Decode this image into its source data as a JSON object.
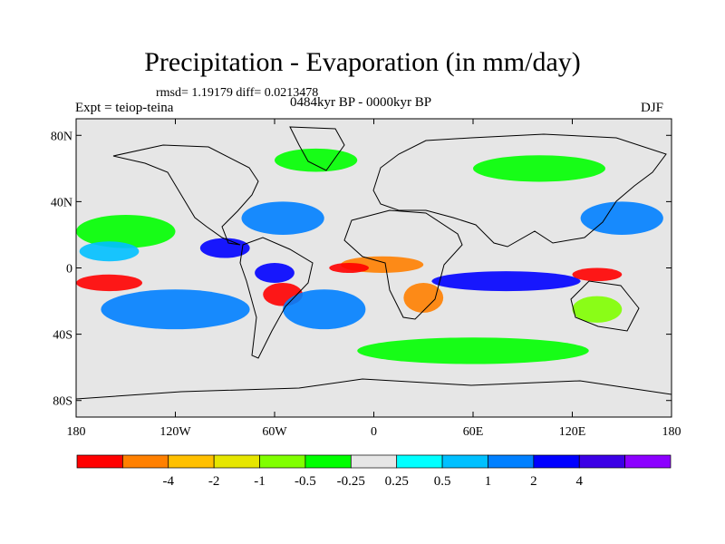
{
  "title": "Precipitation - Evaporation (in mm/day)",
  "stats": "rmsd= 1.19179 diff= 0.0213478",
  "experiment": "Expt = teiop-teina",
  "period": "0484kyr BP - 0000kyr BP",
  "season": "DJF",
  "map": {
    "projection": "cylindrical-equidistant",
    "lon_range": [
      -180,
      180
    ],
    "lat_range": [
      -90,
      90
    ],
    "lon_ticks": [
      {
        "value": -180,
        "label": "180"
      },
      {
        "value": -120,
        "label": "120W"
      },
      {
        "value": -60,
        "label": "60W"
      },
      {
        "value": 0,
        "label": "0"
      },
      {
        "value": 60,
        "label": "60E"
      },
      {
        "value": 120,
        "label": "120E"
      },
      {
        "value": 180,
        "label": "180"
      }
    ],
    "lat_ticks": [
      {
        "value": 80,
        "label": "80N"
      },
      {
        "value": 40,
        "label": "40N"
      },
      {
        "value": 0,
        "label": "0"
      },
      {
        "value": -40,
        "label": "40S"
      },
      {
        "value": -80,
        "label": "80S"
      }
    ],
    "background_color": "#e6e6e6"
  },
  "colorbar": {
    "colors": [
      "#ff0000",
      "#ff8000",
      "#ffc000",
      "#e6e600",
      "#80ff00",
      "#00ff00",
      "#e6e6e6",
      "#00ffff",
      "#00c0ff",
      "#0080ff",
      "#0000ff",
      "#3c00e6",
      "#8c00ff"
    ],
    "labels": [
      "-4",
      "-2",
      "-1",
      "-0.5",
      "-0.25",
      "0.25",
      "0.5",
      "1",
      "2",
      "4"
    ]
  },
  "fields": [
    {
      "name": "equatorial-pacific-red",
      "color": "#ff0000",
      "lon": -160,
      "lat": -9,
      "rlon": 20,
      "rlat": 5
    },
    {
      "name": "south-pacific-blue",
      "color": "#0080ff",
      "lon": -120,
      "lat": -25,
      "rlon": 45,
      "rlat": 12
    },
    {
      "name": "north-pacific-green",
      "color": "#00ff00",
      "lon": -150,
      "lat": 22,
      "rlon": 30,
      "rlat": 10
    },
    {
      "name": "north-pacific-cyan",
      "color": "#00c0ff",
      "lon": -160,
      "lat": 10,
      "rlon": 18,
      "rlat": 6
    },
    {
      "name": "central-america-blue",
      "color": "#0000ff",
      "lon": -90,
      "lat": 12,
      "rlon": 15,
      "rlat": 6
    },
    {
      "name": "amazon-blue",
      "color": "#0000ff",
      "lon": -60,
      "lat": -3,
      "rlon": 12,
      "rlat": 6
    },
    {
      "name": "south-america-red",
      "color": "#ff0000",
      "lon": -55,
      "lat": -16,
      "rlon": 12,
      "rlat": 7
    },
    {
      "name": "south-atlantic-blue",
      "color": "#0080ff",
      "lon": -30,
      "lat": -25,
      "rlon": 25,
      "rlat": 12
    },
    {
      "name": "north-atlantic-blue",
      "color": "#0080ff",
      "lon": -55,
      "lat": 30,
      "rlon": 25,
      "rlat": 10
    },
    {
      "name": "greenland-green",
      "color": "#00ff00",
      "lon": -35,
      "lat": 65,
      "rlon": 25,
      "rlat": 7
    },
    {
      "name": "africa-orange",
      "color": "#ff8000",
      "lon": 5,
      "lat": 2,
      "rlon": 25,
      "rlat": 5
    },
    {
      "name": "africa-red",
      "color": "#ff0000",
      "lon": -15,
      "lat": 0,
      "rlon": 12,
      "rlat": 3
    },
    {
      "name": "south-africa-orange",
      "color": "#ff8000",
      "lon": 30,
      "lat": -18,
      "rlon": 12,
      "rlat": 9
    },
    {
      "name": "indian-ocean-blue",
      "color": "#0000ff",
      "lon": 80,
      "lat": -8,
      "rlon": 45,
      "rlat": 6
    },
    {
      "name": "maritime-red",
      "color": "#ff0000",
      "lon": 135,
      "lat": -4,
      "rlon": 15,
      "rlat": 4
    },
    {
      "name": "west-pacific-blue",
      "color": "#0080ff",
      "lon": 150,
      "lat": 30,
      "rlon": 25,
      "rlat": 10
    },
    {
      "name": "australia-green",
      "color": "#80ff00",
      "lon": 135,
      "lat": -25,
      "rlon": 15,
      "rlat": 8
    },
    {
      "name": "siberia-green",
      "color": "#00ff00",
      "lon": 100,
      "lat": 60,
      "rlon": 40,
      "rlat": 8
    },
    {
      "name": "southern-ocean-green",
      "color": "#00ff00",
      "lon": 60,
      "lat": -50,
      "rlon": 70,
      "rlat": 8
    }
  ]
}
